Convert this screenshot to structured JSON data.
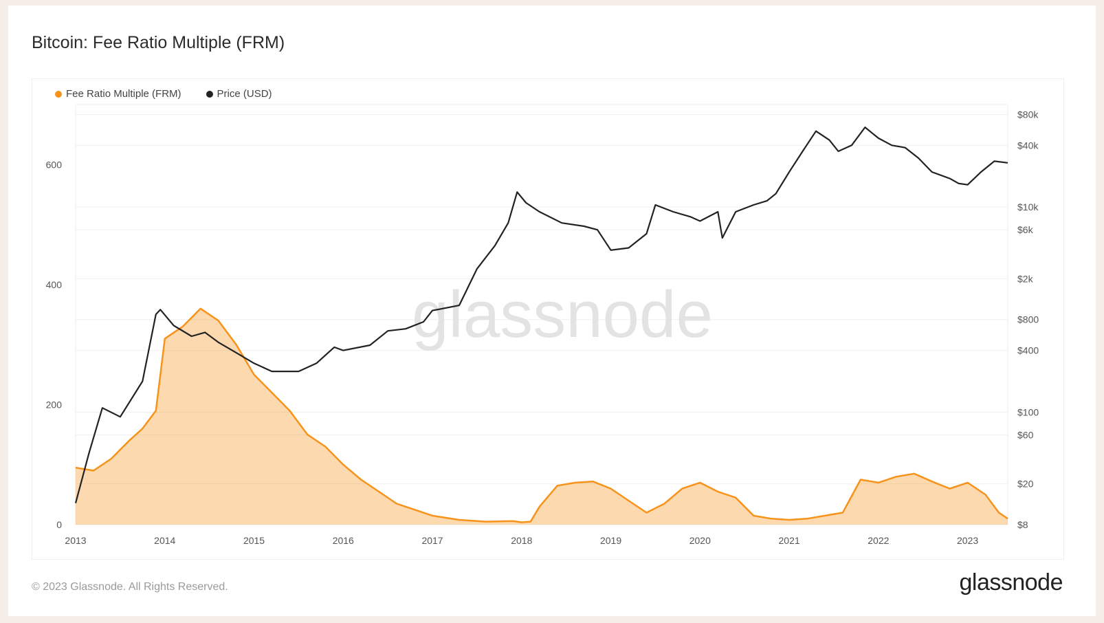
{
  "header": {
    "title": "Bitcoin: Fee Ratio Multiple (FRM)"
  },
  "footer": {
    "copyright": "© 2023 Glassnode. All Rights Reserved.",
    "brand": "glassnode"
  },
  "watermark": "glassnode",
  "colors": {
    "frm": "#f7931a",
    "price": "#222222",
    "grid": "#eeeeee"
  },
  "chart_data": {
    "type": "line",
    "title": "Bitcoin: Fee Ratio Multiple (FRM)",
    "legend_position": "top-left",
    "grid": true,
    "x_ticks": [
      "2013",
      "2014",
      "2015",
      "2016",
      "2017",
      "2018",
      "2019",
      "2020",
      "2021",
      "2022",
      "2023"
    ],
    "x_range": [
      2013.0,
      2023.45
    ],
    "y_left": {
      "ticks": [
        "0",
        "200",
        "400",
        "600"
      ],
      "range": [
        0,
        700
      ]
    },
    "y_right": {
      "scale": "log",
      "ticks": [
        {
          "label": "$80k",
          "value": 80000
        },
        {
          "label": "$40k",
          "value": 40000
        },
        {
          "label": "$10k",
          "value": 10000
        },
        {
          "label": "$6k",
          "value": 6000
        },
        {
          "label": "$2k",
          "value": 2000
        },
        {
          "label": "$800",
          "value": 800
        },
        {
          "label": "$400",
          "value": 400
        },
        {
          "label": "$100",
          "value": 100
        },
        {
          "label": "$60",
          "value": 60
        },
        {
          "label": "$20",
          "value": 20
        },
        {
          "label": "$8",
          "value": 8
        }
      ]
    },
    "series": [
      {
        "name": "Fee Ratio Multiple (FRM)",
        "axis": "left",
        "x": [
          2013.0,
          2013.2,
          2013.4,
          2013.6,
          2013.75,
          2013.9,
          2014.0,
          2014.2,
          2014.4,
          2014.6,
          2014.8,
          2015.0,
          2015.2,
          2015.4,
          2015.6,
          2015.8,
          2016.0,
          2016.2,
          2016.4,
          2016.6,
          2016.8,
          2017.0,
          2017.3,
          2017.6,
          2017.9,
          2018.0,
          2018.1,
          2018.2,
          2018.4,
          2018.6,
          2018.8,
          2019.0,
          2019.2,
          2019.4,
          2019.6,
          2019.8,
          2020.0,
          2020.2,
          2020.4,
          2020.6,
          2020.8,
          2021.0,
          2021.2,
          2021.4,
          2021.6,
          2021.8,
          2022.0,
          2022.2,
          2022.4,
          2022.6,
          2022.8,
          2023.0,
          2023.2,
          2023.35,
          2023.45
        ],
        "y": [
          95,
          90,
          110,
          140,
          160,
          190,
          310,
          330,
          360,
          340,
          300,
          250,
          220,
          190,
          150,
          130,
          100,
          75,
          55,
          35,
          25,
          15,
          8,
          5,
          6,
          4,
          5,
          30,
          65,
          70,
          72,
          60,
          40,
          20,
          35,
          60,
          70,
          55,
          45,
          15,
          10,
          8,
          10,
          15,
          20,
          75,
          70,
          80,
          85,
          72,
          60,
          70,
          50,
          20,
          10
        ]
      },
      {
        "name": "Price (USD)",
        "axis": "right",
        "x": [
          2013.0,
          2013.15,
          2013.3,
          2013.5,
          2013.75,
          2013.9,
          2013.95,
          2014.1,
          2014.3,
          2014.45,
          2014.6,
          2014.8,
          2015.0,
          2015.2,
          2015.5,
          2015.7,
          2015.9,
          2016.0,
          2016.3,
          2016.5,
          2016.7,
          2016.9,
          2017.0,
          2017.3,
          2017.5,
          2017.7,
          2017.85,
          2017.95,
          2018.05,
          2018.2,
          2018.45,
          2018.7,
          2018.85,
          2019.0,
          2019.2,
          2019.4,
          2019.5,
          2019.7,
          2019.9,
          2020.0,
          2020.2,
          2020.25,
          2020.4,
          2020.6,
          2020.75,
          2020.85,
          2021.0,
          2021.15,
          2021.3,
          2021.45,
          2021.55,
          2021.7,
          2021.85,
          2022.0,
          2022.15,
          2022.3,
          2022.45,
          2022.6,
          2022.8,
          2022.9,
          2023.0,
          2023.15,
          2023.3,
          2023.45
        ],
        "y": [
          13,
          40,
          110,
          90,
          200,
          900,
          1000,
          700,
          550,
          600,
          480,
          380,
          300,
          250,
          250,
          300,
          430,
          400,
          450,
          620,
          650,
          760,
          980,
          1100,
          2500,
          4200,
          7000,
          14000,
          11000,
          9000,
          7000,
          6500,
          6000,
          3800,
          4000,
          5500,
          10500,
          9000,
          8000,
          7300,
          9000,
          5000,
          9000,
          10500,
          11500,
          13500,
          22000,
          35000,
          55000,
          45000,
          35000,
          40000,
          60000,
          47000,
          40000,
          38000,
          30000,
          22000,
          19000,
          17000,
          16500,
          22000,
          28000,
          27000
        ]
      }
    ]
  }
}
